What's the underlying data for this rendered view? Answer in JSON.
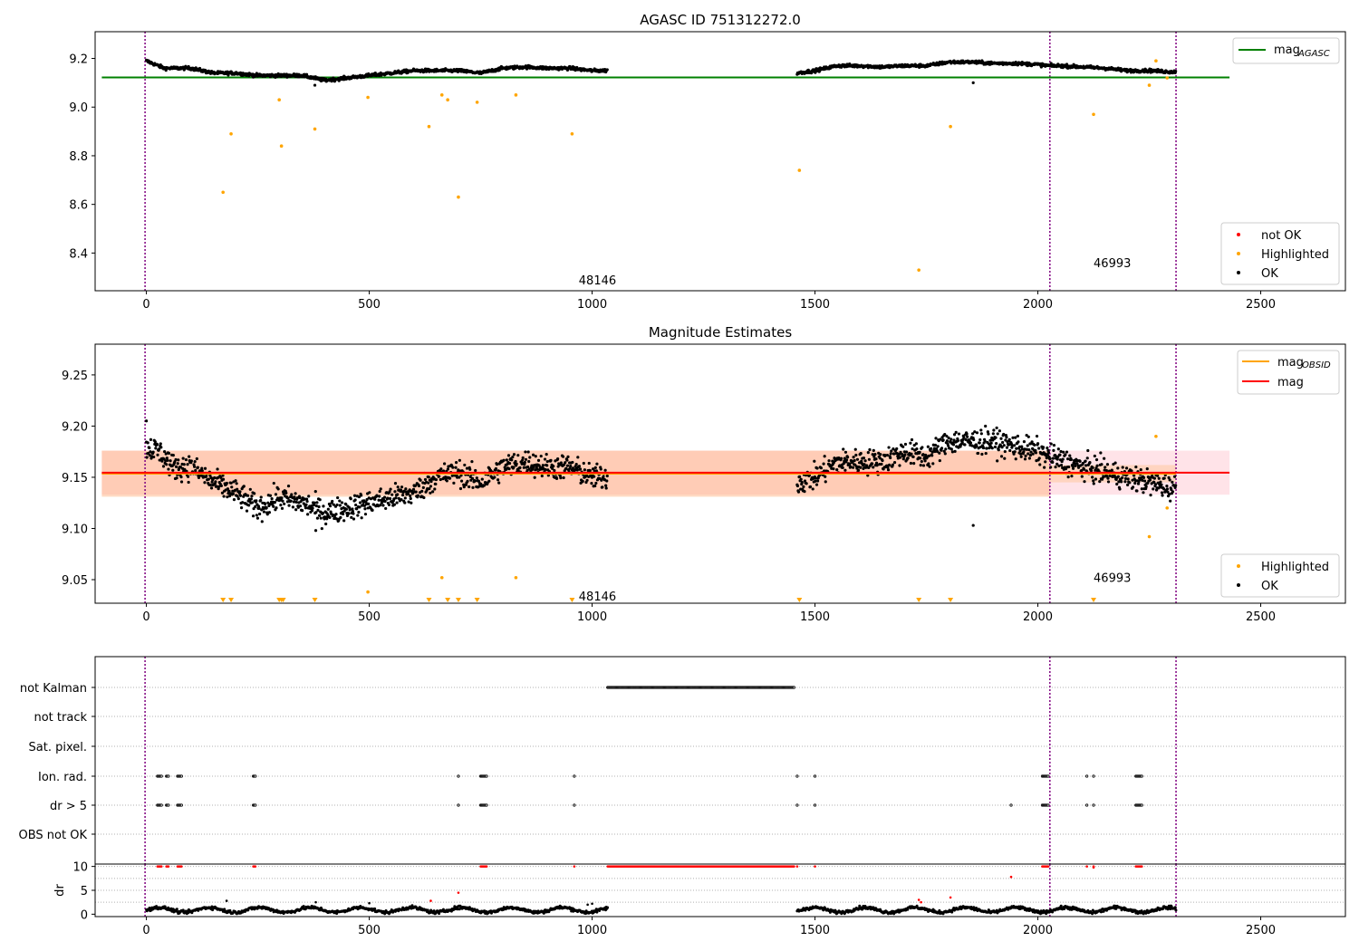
{
  "chart_data": [
    {
      "type": "scatter",
      "title": "AGASC ID 751312272.0",
      "xlim": [
        -115,
        2690
      ],
      "ylim": [
        8.245,
        9.31
      ],
      "xticks": [
        0,
        500,
        1000,
        1500,
        2000,
        2500
      ],
      "yticks": [
        8.4,
        8.6,
        8.8,
        9.0,
        9.2
      ],
      "ytick_labels": [
        "8.4",
        "8.6",
        "8.8",
        "9.0",
        "9.2"
      ],
      "series": [
        {
          "name": "not OK",
          "color": "#ff0000",
          "points": []
        },
        {
          "name": "Highlighted",
          "color": "#ffa500",
          "points": [
            [
              172,
              8.65
            ],
            [
              190,
              8.89
            ],
            [
              298,
              9.03
            ],
            [
              303,
              8.84
            ],
            [
              378,
              8.91
            ],
            [
              497,
              9.04
            ],
            [
              634,
              8.92
            ],
            [
              663,
              9.05
            ],
            [
              676,
              9.03
            ],
            [
              700,
              8.63
            ],
            [
              742,
              9.02
            ],
            [
              829,
              9.05
            ],
            [
              955,
              8.89
            ],
            [
              1465,
              8.74
            ],
            [
              1733,
              8.33
            ],
            [
              1804,
              8.92
            ],
            [
              2125,
              8.97
            ],
            [
              2250,
              9.09
            ],
            [
              2265,
              9.19
            ],
            [
              2290,
              9.12
            ]
          ]
        },
        {
          "name": "OK",
          "color": "#000000",
          "profile": [
            [
              0,
              9.19
            ],
            [
              40,
              9.16
            ],
            [
              100,
              9.16
            ],
            [
              150,
              9.14
            ],
            [
              200,
              9.14
            ],
            [
              250,
              9.13
            ],
            [
              300,
              9.13
            ],
            [
              350,
              9.13
            ],
            [
              400,
              9.11
            ],
            [
              450,
              9.12
            ],
            [
              500,
              9.13
            ],
            [
              550,
              9.14
            ],
            [
              600,
              9.15
            ],
            [
              650,
              9.15
            ],
            [
              700,
              9.15
            ],
            [
              750,
              9.14
            ],
            [
              800,
              9.16
            ],
            [
              850,
              9.165
            ],
            [
              900,
              9.16
            ],
            [
              950,
              9.16
            ],
            [
              1000,
              9.15
            ],
            [
              1035,
              9.15
            ],
            [
              1460,
              9.14
            ],
            [
              1500,
              9.15
            ],
            [
              1550,
              9.17
            ],
            [
              1600,
              9.17
            ],
            [
              1650,
              9.165
            ],
            [
              1700,
              9.17
            ],
            [
              1750,
              9.17
            ],
            [
              1800,
              9.185
            ],
            [
              1850,
              9.185
            ],
            [
              1900,
              9.18
            ],
            [
              1950,
              9.18
            ],
            [
              2000,
              9.175
            ],
            [
              2025,
              9.17
            ],
            [
              2050,
              9.17
            ],
            [
              2100,
              9.165
            ],
            [
              2150,
              9.16
            ],
            [
              2200,
              9.15
            ],
            [
              2250,
              9.15
            ],
            [
              2300,
              9.145
            ]
          ],
          "scatter": 0.012,
          "outliers": [
            [
              1855,
              9.1
            ],
            [
              378,
              9.09
            ]
          ]
        }
      ],
      "reference_lines": [
        {
          "name": "mag_AGASC",
          "y": 9.122,
          "x_range": [
            -100,
            2430
          ],
          "color": "#008000"
        }
      ],
      "vlines": [
        {
          "x": -3,
          "color": "#800080"
        },
        {
          "x": 2027,
          "color": "#800080"
        },
        {
          "x": 2310,
          "color": "#800080"
        }
      ],
      "annotations": [
        {
          "text": "48146",
          "x": 970,
          "y": 8.29
        },
        {
          "text": "46993",
          "x": 2125,
          "y": 8.36
        }
      ],
      "legends": [
        {
          "placement": "top-right",
          "entries": [
            {
              "label": "mag",
              "sub": "AGASC",
              "color": "#008000",
              "kind": "line"
            }
          ]
        },
        {
          "placement": "bottom-right",
          "entries": [
            {
              "label": "not OK",
              "color": "#ff0000",
              "kind": "dot"
            },
            {
              "label": "Highlighted",
              "color": "#ffa500",
              "kind": "dot"
            },
            {
              "label": "OK",
              "color": "#000000",
              "kind": "dot"
            }
          ]
        }
      ]
    },
    {
      "type": "scatter",
      "title": "Magnitude Estimates",
      "xlim": [
        -115,
        2690
      ],
      "ylim": [
        9.027,
        9.28
      ],
      "xticks": [
        0,
        500,
        1000,
        1500,
        2000,
        2500
      ],
      "yticks": [
        9.05,
        9.1,
        9.15,
        9.2,
        9.25
      ],
      "ytick_labels": [
        "9.05",
        "9.10",
        "9.15",
        "9.20",
        "9.25"
      ],
      "series": [
        {
          "name": "Highlighted",
          "color": "#ffa500",
          "points": [
            [
              497,
              9.038
            ],
            [
              663,
              9.052
            ],
            [
              829,
              9.052
            ],
            [
              2250,
              9.092
            ],
            [
              2265,
              9.19
            ],
            [
              2290,
              9.12
            ]
          ],
          "below_range_x": [
            172,
            190,
            298,
            303,
            307,
            378,
            634,
            676,
            700,
            742,
            955,
            1465,
            1733,
            1804,
            2125
          ]
        },
        {
          "name": "OK",
          "color": "#000000",
          "profile": [
            [
              0,
              9.18
            ],
            [
              30,
              9.175
            ],
            [
              60,
              9.16
            ],
            [
              100,
              9.16
            ],
            [
              150,
              9.145
            ],
            [
              200,
              9.135
            ],
            [
              250,
              9.12
            ],
            [
              300,
              9.13
            ],
            [
              350,
              9.125
            ],
            [
              400,
              9.115
            ],
            [
              450,
              9.12
            ],
            [
              500,
              9.125
            ],
            [
              550,
              9.13
            ],
            [
              600,
              9.135
            ],
            [
              650,
              9.15
            ],
            [
              700,
              9.155
            ],
            [
              750,
              9.145
            ],
            [
              800,
              9.16
            ],
            [
              850,
              9.165
            ],
            [
              900,
              9.16
            ],
            [
              950,
              9.16
            ],
            [
              1000,
              9.15
            ],
            [
              1035,
              9.15
            ],
            [
              1460,
              9.145
            ],
            [
              1500,
              9.15
            ],
            [
              1550,
              9.165
            ],
            [
              1600,
              9.165
            ],
            [
              1650,
              9.165
            ],
            [
              1700,
              9.175
            ],
            [
              1750,
              9.17
            ],
            [
              1800,
              9.185
            ],
            [
              1850,
              9.185
            ],
            [
              1900,
              9.185
            ],
            [
              1950,
              9.18
            ],
            [
              2000,
              9.175
            ],
            [
              2025,
              9.17
            ],
            [
              2060,
              9.165
            ],
            [
              2100,
              9.16
            ],
            [
              2150,
              9.155
            ],
            [
              2200,
              9.15
            ],
            [
              2250,
              9.145
            ],
            [
              2300,
              9.14
            ]
          ],
          "scatter": 0.012,
          "outliers": [
            [
              1855,
              9.103
            ],
            [
              0,
              9.205
            ],
            [
              380,
              9.098
            ]
          ]
        }
      ],
      "reference_lines": [
        {
          "name": "mag_OBSID",
          "y": 9.1535,
          "x_range": [
            -100,
            2027
          ],
          "color": "#ffa500"
        },
        {
          "name": "mag_OBSID",
          "y": 9.1535,
          "x_range": [
            2027,
            2310
          ],
          "color": "#ffa500"
        },
        {
          "name": "mag",
          "y": 9.1545,
          "x_range": [
            -100,
            2430
          ],
          "color": "#ff0000"
        }
      ],
      "bands": [
        {
          "y": [
            9.133,
            9.176
          ],
          "x_range": [
            -100,
            2430
          ],
          "color": "#ffc0cb"
        },
        {
          "y": [
            9.131,
            9.176
          ],
          "x_range": [
            -100,
            2027
          ],
          "color": "#ffb07a"
        },
        {
          "y": [
            9.145,
            9.162
          ],
          "x_range": [
            2027,
            2310
          ],
          "color": "#ffc090"
        }
      ],
      "vlines": [
        {
          "x": -3,
          "color": "#800080"
        },
        {
          "x": 2027,
          "color": "#800080"
        },
        {
          "x": 2310,
          "color": "#800080"
        }
      ],
      "annotations": [
        {
          "text": "48146",
          "x": 970,
          "y": 9.034
        },
        {
          "text": "46993",
          "x": 2125,
          "y": 9.052
        }
      ],
      "legends": [
        {
          "placement": "top-right",
          "entries": [
            {
              "label": "mag",
              "sub": "OBSID",
              "color": "#ffa500",
              "kind": "line"
            },
            {
              "label": "mag",
              "color": "#ff0000",
              "kind": "line"
            }
          ]
        },
        {
          "placement": "bottom-right",
          "entries": [
            {
              "label": "Highlighted",
              "color": "#ffa500",
              "kind": "dot"
            },
            {
              "label": "OK",
              "color": "#000000",
              "kind": "dot"
            }
          ]
        }
      ]
    },
    {
      "type": "scatter",
      "title": "",
      "xlim": [
        -115,
        2690
      ],
      "categories": [
        "not Kalman",
        "not track",
        "Sat. pixel.",
        "Ion. rad.",
        "dr > 5",
        "OBS not OK"
      ],
      "flag_ranges": {
        "not Kalman": [
          [
            1035,
            1455
          ]
        ],
        "Ion. rad.": [
          [
            25,
            35
          ],
          [
            45,
            50
          ],
          [
            70,
            80
          ],
          [
            240,
            245
          ],
          [
            700,
            702
          ],
          [
            750,
            765
          ],
          [
            960,
            962
          ],
          [
            1460,
            1462
          ],
          [
            1500,
            1502
          ],
          [
            2010,
            2025
          ],
          [
            2110,
            2112
          ],
          [
            2125,
            2127
          ],
          [
            2220,
            2235
          ]
        ],
        "dr > 5": [
          [
            25,
            35
          ],
          [
            45,
            50
          ],
          [
            70,
            80
          ],
          [
            240,
            245
          ],
          [
            700,
            702
          ],
          [
            750,
            765
          ],
          [
            960,
            962
          ],
          [
            1460,
            1462
          ],
          [
            1500,
            1502
          ],
          [
            1940,
            1942
          ],
          [
            2010,
            2025
          ],
          [
            2110,
            2112
          ],
          [
            2125,
            2127
          ],
          [
            2220,
            2235
          ]
        ]
      },
      "vlines": [
        {
          "x": -3,
          "color": "#800080"
        },
        {
          "x": 2027,
          "color": "#800080"
        },
        {
          "x": 2310,
          "color": "#800080"
        }
      ]
    },
    {
      "type": "scatter",
      "title": "",
      "ylabel": "dr",
      "xlim": [
        -115,
        2690
      ],
      "ylim": [
        -0.5,
        10.5
      ],
      "xticks": [
        0,
        500,
        1000,
        1500,
        2000,
        2500
      ],
      "yticks": [
        0,
        5,
        10
      ],
      "ytick_labels": [
        "0",
        "5",
        "10"
      ],
      "segments": [
        [
          0,
          1035
        ],
        [
          1460,
          2310
        ]
      ],
      "red_clusters": [
        [
          25,
          35
        ],
        [
          45,
          50
        ],
        [
          70,
          80
        ],
        [
          240,
          245
        ],
        [
          750,
          765
        ],
        [
          960,
          962
        ],
        [
          1035,
          1455
        ],
        [
          1460,
          1462
        ],
        [
          1500,
          1502
        ],
        [
          2010,
          2025
        ],
        [
          2110,
          2112
        ],
        [
          2125,
          2127
        ],
        [
          2220,
          2235
        ]
      ],
      "red_points": [
        [
          700,
          4.5
        ],
        [
          638,
          2.8
        ],
        [
          1940,
          7.8
        ],
        [
          1804,
          3.5
        ],
        [
          1733,
          3.0
        ],
        [
          1738,
          2.5
        ],
        [
          2125,
          9.8
        ]
      ],
      "black_outliers": [
        [
          500,
          2.3
        ],
        [
          380,
          2.5
        ],
        [
          180,
          2.8
        ],
        [
          990,
          2.0
        ],
        [
          1000,
          2.2
        ]
      ],
      "vlines": [
        {
          "x": -3,
          "color": "#800080"
        },
        {
          "x": 2027,
          "color": "#800080"
        },
        {
          "x": 2310,
          "color": "#800080"
        }
      ]
    }
  ]
}
